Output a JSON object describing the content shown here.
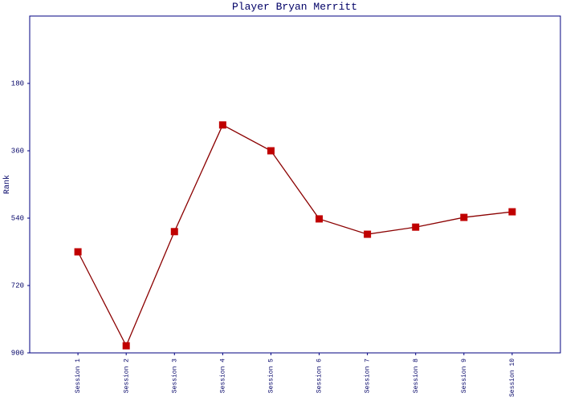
{
  "chart_data": {
    "type": "line",
    "title": "Player Bryan Merritt",
    "y_label": "Rank",
    "categories": [
      "Session 1",
      "Session 2",
      "Session 3",
      "Session 4",
      "Session 5",
      "Session 6",
      "Session 7",
      "Session 8",
      "Session 9",
      "Session 10"
    ],
    "series": [
      {
        "name": "Rank",
        "color": "#8b0000",
        "marker_color": "#c00000",
        "values": [
          630,
          881,
          576,
          291,
          360,
          542,
          583,
          564,
          538,
          523
        ]
      }
    ],
    "ylim": [
      900,
      0
    ],
    "yticks": [
      180,
      360,
      540,
      720,
      900
    ],
    "grid": false,
    "legend": false
  }
}
